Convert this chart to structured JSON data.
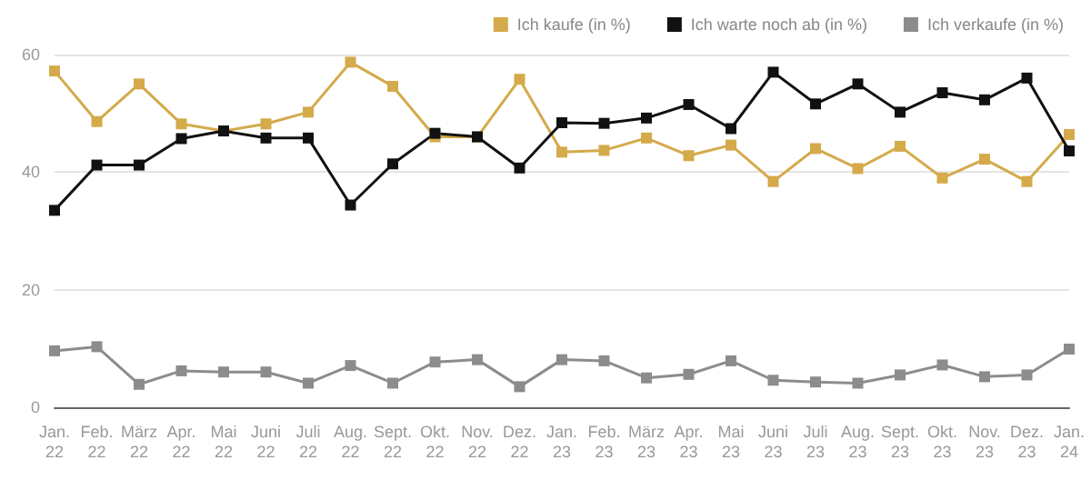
{
  "chart_data": {
    "type": "line",
    "categories": [
      "Jan.\n22",
      "Feb.\n22",
      "März\n22",
      "Apr.\n22",
      "Mai\n22",
      "Juni\n22",
      "Juli\n22",
      "Aug.\n22",
      "Sept.\n22",
      "Okt.\n22",
      "Nov.\n22",
      "Dez.\n22",
      "Jan.\n23",
      "Feb.\n23",
      "März\n23",
      "Apr.\n23",
      "Mai\n23",
      "Juni\n23",
      "Juli\n23",
      "Aug.\n23",
      "Sept.\n23",
      "Okt.\n23",
      "Nov.\n23",
      "Dez.\n23",
      "Jan.\n24"
    ],
    "series": [
      {
        "name": "Ich kaufe (in %)",
        "color": "#d4aa4a",
        "values": [
          57.2,
          48.6,
          55,
          48.2,
          47,
          48.2,
          50.2,
          58.7,
          54.6,
          46,
          46,
          55.8,
          43.4,
          43.7,
          45.8,
          42.8,
          44.6,
          38.4,
          44,
          40.6,
          44.4,
          39,
          42.2,
          38.4,
          46.4
        ]
      },
      {
        "name": "Ich warte noch ab (in %)",
        "color": "#111111",
        "values": [
          33.5,
          41.2,
          41.2,
          45.7,
          47,
          45.8,
          45.8,
          34.4,
          41.4,
          46.6,
          46,
          40.7,
          48.4,
          48.3,
          49.2,
          51.5,
          47.4,
          57,
          51.6,
          55,
          50.2,
          53.5,
          52.3,
          56,
          43.6
        ]
      },
      {
        "name": "Ich verkaufe (in %)",
        "color": "#8c8c8c",
        "values": [
          9.6,
          10.3,
          3.9,
          6.2,
          6,
          6,
          4.1,
          7.1,
          4.1,
          7.7,
          8.1,
          3.5,
          8.1,
          7.9,
          5,
          5.6,
          7.9,
          4.6,
          4.3,
          4.1,
          5.5,
          7.2,
          5.2,
          5.5,
          9.9
        ]
      }
    ],
    "ylim": [
      0,
      60
    ],
    "yticks": [
      0,
      20,
      40,
      60
    ],
    "grid": "y",
    "legend": "top right",
    "marker": "square",
    "line_style": "solid"
  }
}
